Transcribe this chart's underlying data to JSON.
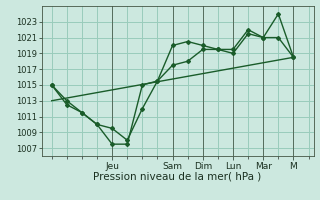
{
  "background_color": "#cce8df",
  "grid_color": "#99ccbb",
  "line_color": "#1a5c2a",
  "marker_color": "#1a5c2a",
  "xlabel": "Pression niveau de la mer( hPa )",
  "ylim": [
    1006,
    1025
  ],
  "yticks": [
    1007,
    1009,
    1011,
    1013,
    1015,
    1017,
    1019,
    1021,
    1023
  ],
  "x_day_labels": [
    "Jeu",
    "Sam",
    "Dim",
    "Lun",
    "Mar",
    "M"
  ],
  "x_day_positions": [
    3.0,
    6.0,
    7.5,
    9.0,
    10.5,
    12.0
  ],
  "xlim": [
    -0.5,
    13.0
  ],
  "series1_x": [
    0,
    0.75,
    1.5,
    2.25,
    3.0,
    3.75,
    4.5,
    5.25,
    6.0,
    6.75,
    7.5,
    8.25,
    9.0,
    9.75,
    10.5,
    11.25,
    12.0
  ],
  "series1_y": [
    1015,
    1013,
    1011.5,
    1010,
    1007.5,
    1007.5,
    1015,
    1015.5,
    1020,
    1020.5,
    1020,
    1019.5,
    1019,
    1021.5,
    1021,
    1024,
    1018.5
  ],
  "series2_x": [
    0,
    0.75,
    1.5,
    2.25,
    3.0,
    3.75,
    4.5,
    5.25,
    6.0,
    6.75,
    7.5,
    8.25,
    9.0,
    9.75,
    10.5,
    11.25,
    12.0
  ],
  "series2_y": [
    1015,
    1012.5,
    1011.5,
    1010,
    1009.5,
    1008,
    1012,
    1015.5,
    1017.5,
    1018,
    1019.5,
    1019.5,
    1019.5,
    1022,
    1021,
    1021,
    1018.5
  ],
  "series3_x": [
    0,
    12.0
  ],
  "series3_y": [
    1013,
    1018.5
  ],
  "xlabel_fontsize": 7.5,
  "ytick_fontsize": 6,
  "xtick_fontsize": 6.5
}
